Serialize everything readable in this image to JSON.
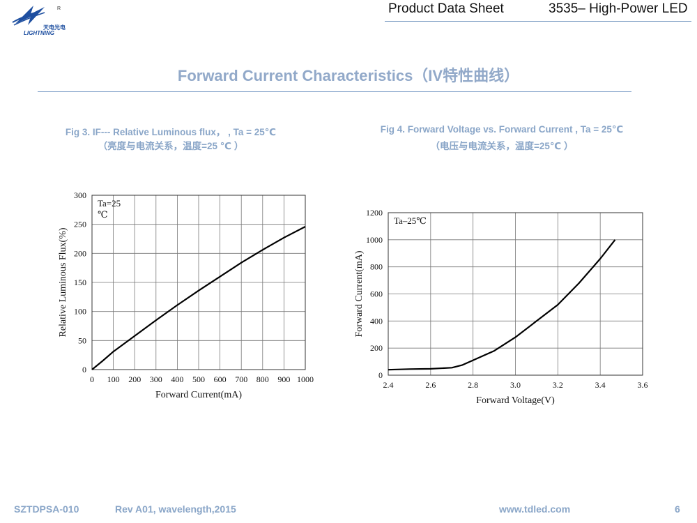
{
  "header": {
    "logo_text_cn": "天电光电",
    "logo_text_en": "LIGHTNING",
    "logo_mark": "R",
    "doc_type": "Product Data Sheet",
    "product": "3535– High-Power LED"
  },
  "page_title": "Forward Current Characteristics（IV特性曲线）",
  "figures": {
    "fig3": {
      "caption_line1": "Fig 3. IF--- Relative Luminous flux， , Ta = 25℃",
      "caption_line2": "（亮度与电流关系，温度=25 ℃ ）"
    },
    "fig4": {
      "caption_line1": "Fig 4. Forward Voltage vs. Forward Current , Ta = 25℃",
      "caption_line2": "（电压与电流关系，温度=25℃ ）"
    }
  },
  "chart_data": [
    {
      "type": "line",
      "title": "",
      "xlabel": "Forward Current(mA)",
      "ylabel": "Relative Luminous Flux(%)",
      "annotation": [
        "Ta=25",
        "℃"
      ],
      "xlim": [
        0,
        1000
      ],
      "ylim": [
        0,
        300
      ],
      "xticks": [
        0,
        100,
        200,
        300,
        400,
        500,
        600,
        700,
        800,
        900,
        1000
      ],
      "yticks": [
        0,
        50,
        100,
        150,
        200,
        250,
        300
      ],
      "grid": true,
      "series": [
        {
          "x": [
            0,
            50,
            100,
            200,
            300,
            400,
            500,
            600,
            700,
            800,
            900,
            1000
          ],
          "y": [
            0,
            15,
            31,
            58,
            85,
            111,
            136,
            160,
            184,
            206,
            227,
            246
          ]
        }
      ]
    },
    {
      "type": "line",
      "title": "",
      "xlabel": "Forward Voltage(V)",
      "ylabel": "Forward Current(mA)",
      "annotation": [
        "Ta–25℃"
      ],
      "xlim": [
        2.4,
        3.6
      ],
      "ylim": [
        0,
        1200
      ],
      "xticks": [
        "2.4",
        "2.6",
        "2.8",
        "3.0",
        "3.2",
        "3.4",
        "3.6"
      ],
      "yticks": [
        0,
        200,
        400,
        600,
        800,
        1000,
        1200
      ],
      "grid": true,
      "series": [
        {
          "x": [
            2.4,
            2.5,
            2.6,
            2.7,
            2.75,
            2.8,
            2.9,
            3.0,
            3.1,
            3.2,
            3.3,
            3.4,
            3.47
          ],
          "y": [
            40,
            45,
            47,
            55,
            75,
            110,
            180,
            280,
            400,
            520,
            680,
            860,
            1000
          ]
        }
      ]
    }
  ],
  "footer": {
    "doc_code": "SZTDPSA-010",
    "revision": "Rev A01, wavelength,2015",
    "website": "www.tdled.com",
    "page_number": "6"
  }
}
